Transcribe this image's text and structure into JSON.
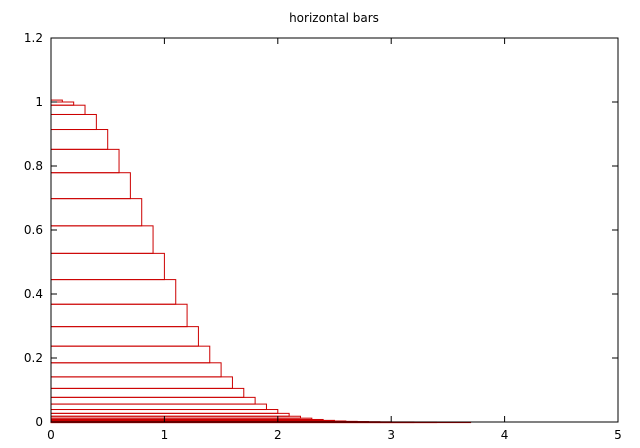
{
  "chart_data": {
    "type": "bar",
    "orientation": "horizontal",
    "title": "horizontal bars",
    "xlabel": "",
    "ylabel": "",
    "xlim": [
      0,
      5
    ],
    "ylim": [
      0,
      1.2
    ],
    "xticks": [
      "0",
      "1",
      "2",
      "3",
      "4",
      "5"
    ],
    "yticks": [
      "0",
      "0.2",
      "0.4",
      "0.6",
      "0.8",
      "1",
      "1.2"
    ],
    "grid": false,
    "legend": "none",
    "bar_color": "#cc0000",
    "bars": [
      {
        "x": 0.1,
        "y0": 1.0,
        "y1": 1.006
      },
      {
        "x": 0.2,
        "y0": 0.99,
        "y1": 1.0
      },
      {
        "x": 0.3,
        "y0": 0.961,
        "y1": 0.99
      },
      {
        "x": 0.4,
        "y0": 0.914,
        "y1": 0.961
      },
      {
        "x": 0.5,
        "y0": 0.852,
        "y1": 0.914
      },
      {
        "x": 0.6,
        "y0": 0.779,
        "y1": 0.852
      },
      {
        "x": 0.7,
        "y0": 0.698,
        "y1": 0.779
      },
      {
        "x": 0.8,
        "y0": 0.613,
        "y1": 0.698
      },
      {
        "x": 0.9,
        "y0": 0.527,
        "y1": 0.613
      },
      {
        "x": 1.0,
        "y0": 0.445,
        "y1": 0.527
      },
      {
        "x": 1.1,
        "y0": 0.368,
        "y1": 0.445
      },
      {
        "x": 1.2,
        "y0": 0.298,
        "y1": 0.368
      },
      {
        "x": 1.3,
        "y0": 0.237,
        "y1": 0.298
      },
      {
        "x": 1.4,
        "y0": 0.185,
        "y1": 0.237
      },
      {
        "x": 1.5,
        "y0": 0.141,
        "y1": 0.185
      },
      {
        "x": 1.6,
        "y0": 0.105,
        "y1": 0.141
      },
      {
        "x": 1.7,
        "y0": 0.077,
        "y1": 0.105
      },
      {
        "x": 1.8,
        "y0": 0.056,
        "y1": 0.077
      },
      {
        "x": 1.9,
        "y0": 0.039,
        "y1": 0.056
      },
      {
        "x": 2.0,
        "y0": 0.027,
        "y1": 0.039
      },
      {
        "x": 2.1,
        "y0": 0.018,
        "y1": 0.027
      },
      {
        "x": 2.2,
        "y0": 0.012,
        "y1": 0.018
      },
      {
        "x": 2.3,
        "y0": 0.0079,
        "y1": 0.012
      },
      {
        "x": 2.4,
        "y0": 0.0051,
        "y1": 0.0079
      },
      {
        "x": 2.5,
        "y0": 0.0032,
        "y1": 0.0051
      },
      {
        "x": 2.6,
        "y0": 0.002,
        "y1": 0.0032
      },
      {
        "x": 2.7,
        "y0": 0.0012,
        "y1": 0.002
      },
      {
        "x": 2.8,
        "y0": 0.0007,
        "y1": 0.0012
      },
      {
        "x": 2.9,
        "y0": 0.0004,
        "y1": 0.0007
      },
      {
        "x": 3.0,
        "y0": 0.0002,
        "y1": 0.0004
      },
      {
        "x": 3.2,
        "y0": 0.0001,
        "y1": 0.0002
      },
      {
        "x": 3.4,
        "y0": 5e-05,
        "y1": 0.0001
      },
      {
        "x": 3.7,
        "y0": 0.0,
        "y1": 5e-05
      }
    ]
  }
}
